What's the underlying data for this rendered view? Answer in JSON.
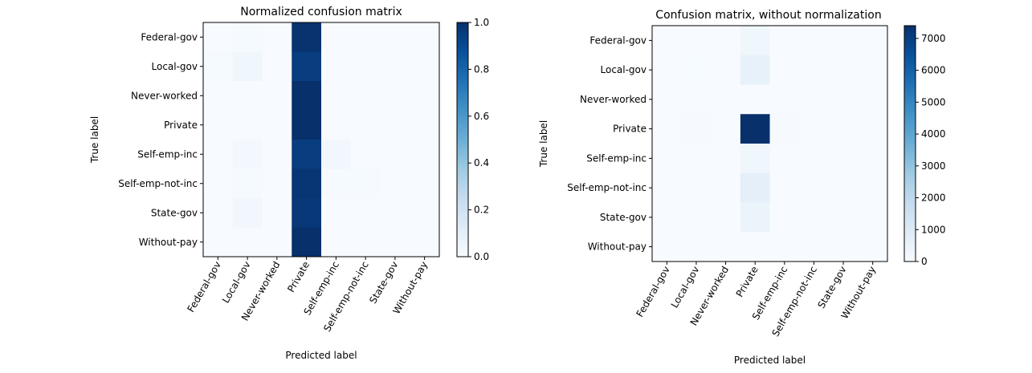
{
  "chart_data": [
    {
      "type": "heatmap",
      "title": "Normalized confusion matrix",
      "xlabel": "Predicted label",
      "ylabel": "True label",
      "x_categories": [
        "Federal-gov",
        "Local-gov",
        "Never-worked",
        "Private",
        "Self-emp-inc",
        "Self-emp-not-inc",
        "State-gov",
        "Without-pay"
      ],
      "y_categories": [
        "Federal-gov",
        "Local-gov",
        "Never-worked",
        "Private",
        "Self-emp-inc",
        "Self-emp-not-inc",
        "State-gov",
        "Without-pay"
      ],
      "values": [
        [
          0.0,
          0.01,
          0.0,
          0.99,
          0.0,
          0.0,
          0.0,
          0.0
        ],
        [
          0.01,
          0.04,
          0.0,
          0.95,
          0.0,
          0.0,
          0.0,
          0.0
        ],
        [
          0.0,
          0.0,
          0.0,
          1.0,
          0.0,
          0.0,
          0.0,
          0.0
        ],
        [
          0.0,
          0.0,
          0.0,
          1.0,
          0.0,
          0.0,
          0.0,
          0.0
        ],
        [
          0.0,
          0.02,
          0.0,
          0.95,
          0.03,
          0.0,
          0.0,
          0.0
        ],
        [
          0.0,
          0.01,
          0.0,
          0.98,
          0.01,
          0.01,
          0.0,
          0.0
        ],
        [
          0.0,
          0.03,
          0.0,
          0.97,
          0.0,
          0.0,
          0.0,
          0.0
        ],
        [
          0.0,
          0.0,
          0.0,
          1.0,
          0.0,
          0.0,
          0.0,
          0.0
        ]
      ],
      "vmin": 0,
      "vmax": 1,
      "colormap": "Blues",
      "colorbar_ticks": [
        "0.0",
        "0.2",
        "0.4",
        "0.6",
        "0.8",
        "1.0"
      ],
      "colorbar_tick_values": [
        0,
        0.2,
        0.4,
        0.6,
        0.8,
        1.0
      ]
    },
    {
      "type": "heatmap",
      "title": "Confusion matrix, without normalization",
      "xlabel": "Predicted label",
      "ylabel": "True label",
      "x_categories": [
        "Federal-gov",
        "Local-gov",
        "Never-worked",
        "Private",
        "Self-emp-inc",
        "Self-emp-not-inc",
        "State-gov",
        "Without-pay"
      ],
      "y_categories": [
        "Federal-gov",
        "Local-gov",
        "Never-worked",
        "Private",
        "Self-emp-inc",
        "Self-emp-not-inc",
        "State-gov",
        "Without-pay"
      ],
      "values": [
        [
          0,
          2,
          0,
          300,
          0,
          0,
          0,
          0
        ],
        [
          6,
          22,
          0,
          600,
          0,
          0,
          0,
          0
        ],
        [
          0,
          0,
          0,
          2,
          0,
          0,
          0,
          0
        ],
        [
          10,
          40,
          0,
          7400,
          30,
          5,
          8,
          0
        ],
        [
          0,
          5,
          0,
          300,
          10,
          0,
          0,
          0
        ],
        [
          1,
          6,
          0,
          680,
          8,
          2,
          0,
          0
        ],
        [
          0,
          10,
          0,
          420,
          0,
          0,
          0,
          0
        ],
        [
          0,
          0,
          0,
          3,
          0,
          0,
          0,
          0
        ]
      ],
      "vmin": 0,
      "vmax": 7400,
      "colormap": "Blues",
      "colorbar_ticks": [
        "0",
        "1000",
        "2000",
        "3000",
        "4000",
        "5000",
        "6000",
        "7000"
      ],
      "colorbar_tick_values": [
        0,
        1000,
        2000,
        3000,
        4000,
        5000,
        6000,
        7000
      ]
    }
  ]
}
